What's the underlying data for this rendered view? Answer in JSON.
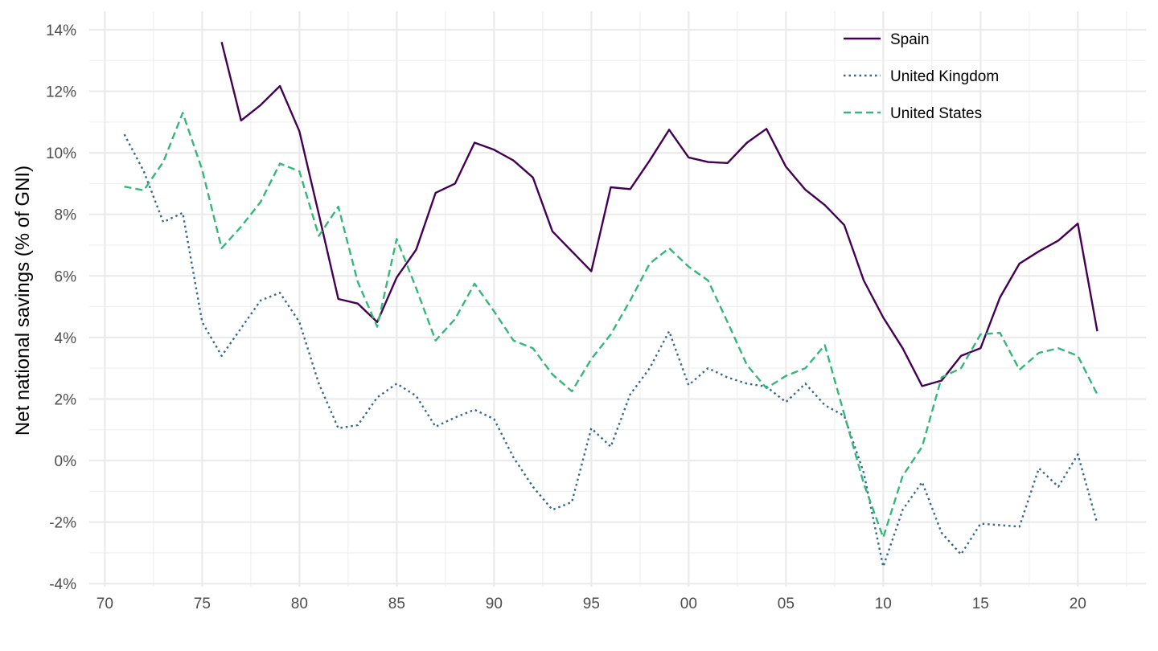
{
  "chart_data": {
    "type": "line",
    "title": "",
    "xlabel": "",
    "ylabel": "Net national savings (% of GNI)",
    "x_ticks": [
      1970,
      1975,
      1980,
      1985,
      1990,
      1995,
      2000,
      2005,
      2010,
      2015,
      2020
    ],
    "x_tick_labels": [
      "70",
      "75",
      "80",
      "85",
      "90",
      "95",
      "00",
      "05",
      "10",
      "15",
      "20"
    ],
    "y_ticks": [
      -4,
      -2,
      0,
      2,
      4,
      6,
      8,
      10,
      12,
      14
    ],
    "y_tick_labels": [
      "-4%",
      "-2%",
      "0%",
      "2%",
      "4%",
      "6%",
      "8%",
      "10%",
      "12%",
      "14%"
    ],
    "xlim": [
      1969.2,
      2023.5
    ],
    "ylim": [
      -4.1,
      14.6
    ],
    "grid": true,
    "legend_position": "top-right",
    "series": [
      {
        "name": "Spain",
        "color": "#440154",
        "dash": "solid",
        "points": [
          [
            1976,
            13.6
          ],
          [
            1977,
            11.05
          ],
          [
            1978,
            11.55
          ],
          [
            1979,
            12.17
          ],
          [
            1980,
            10.7
          ],
          [
            1981,
            8.0
          ],
          [
            1982,
            5.25
          ],
          [
            1983,
            5.1
          ],
          [
            1984,
            4.5
          ],
          [
            1985,
            5.95
          ],
          [
            1986,
            6.85
          ],
          [
            1987,
            8.7
          ],
          [
            1988,
            9.0
          ],
          [
            1989,
            10.33
          ],
          [
            1990,
            10.1
          ],
          [
            1991,
            9.75
          ],
          [
            1992,
            9.2
          ],
          [
            1993,
            7.45
          ],
          [
            1994,
            6.8
          ],
          [
            1995,
            6.15
          ],
          [
            1996,
            8.88
          ],
          [
            1997,
            8.82
          ],
          [
            1998,
            9.75
          ],
          [
            1999,
            10.75
          ],
          [
            2000,
            9.85
          ],
          [
            2001,
            9.7
          ],
          [
            2002,
            9.67
          ],
          [
            2003,
            10.33
          ],
          [
            2004,
            10.78
          ],
          [
            2005,
            9.55
          ],
          [
            2006,
            8.8
          ],
          [
            2007,
            8.3
          ],
          [
            2008,
            7.65
          ],
          [
            2009,
            5.85
          ],
          [
            2010,
            4.65
          ],
          [
            2011,
            3.65
          ],
          [
            2012,
            2.42
          ],
          [
            2013,
            2.6
          ],
          [
            2014,
            3.4
          ],
          [
            2015,
            3.65
          ],
          [
            2016,
            5.3
          ],
          [
            2017,
            6.4
          ],
          [
            2018,
            6.8
          ],
          [
            2019,
            7.15
          ],
          [
            2020,
            7.7
          ],
          [
            2021,
            4.2
          ]
        ]
      },
      {
        "name": "United Kingdom",
        "color": "#31688e",
        "dash": "dotted",
        "points": [
          [
            1971,
            10.6
          ],
          [
            1972,
            9.4
          ],
          [
            1973,
            7.75
          ],
          [
            1974,
            8.05
          ],
          [
            1975,
            4.5
          ],
          [
            1976,
            3.4
          ],
          [
            1977,
            4.3
          ],
          [
            1978,
            5.2
          ],
          [
            1979,
            5.45
          ],
          [
            1980,
            4.5
          ],
          [
            1981,
            2.5
          ],
          [
            1982,
            1.05
          ],
          [
            1983,
            1.15
          ],
          [
            1984,
            2.05
          ],
          [
            1985,
            2.5
          ],
          [
            1986,
            2.1
          ],
          [
            1987,
            1.1
          ],
          [
            1988,
            1.4
          ],
          [
            1989,
            1.65
          ],
          [
            1990,
            1.35
          ],
          [
            1991,
            0.1
          ],
          [
            1992,
            -0.85
          ],
          [
            1993,
            -1.6
          ],
          [
            1994,
            -1.35
          ],
          [
            1995,
            1.05
          ],
          [
            1996,
            0.45
          ],
          [
            1997,
            2.15
          ],
          [
            1998,
            3.0
          ],
          [
            1999,
            4.2
          ],
          [
            2000,
            2.45
          ],
          [
            2001,
            3.0
          ],
          [
            2002,
            2.7
          ],
          [
            2003,
            2.5
          ],
          [
            2004,
            2.4
          ],
          [
            2005,
            1.9
          ],
          [
            2006,
            2.5
          ],
          [
            2007,
            1.8
          ],
          [
            2008,
            1.45
          ],
          [
            2009,
            -0.4
          ],
          [
            2010,
            -3.45
          ],
          [
            2011,
            -1.6
          ],
          [
            2012,
            -0.7
          ],
          [
            2013,
            -2.35
          ],
          [
            2014,
            -3.05
          ],
          [
            2015,
            -2.05
          ],
          [
            2016,
            -2.1
          ],
          [
            2017,
            -2.15
          ],
          [
            2018,
            -0.25
          ],
          [
            2019,
            -0.85
          ],
          [
            2020,
            0.2
          ],
          [
            2021,
            -2.05
          ]
        ]
      },
      {
        "name": "United States",
        "color": "#35b779",
        "dash": "dashed",
        "points": [
          [
            1971,
            8.9
          ],
          [
            1972,
            8.78
          ],
          [
            1973,
            9.7
          ],
          [
            1974,
            11.3
          ],
          [
            1975,
            9.45
          ],
          [
            1976,
            6.9
          ],
          [
            1977,
            7.6
          ],
          [
            1978,
            8.4
          ],
          [
            1979,
            9.65
          ],
          [
            1980,
            9.4
          ],
          [
            1981,
            7.3
          ],
          [
            1982,
            8.25
          ],
          [
            1983,
            5.8
          ],
          [
            1984,
            4.35
          ],
          [
            1985,
            7.2
          ],
          [
            1986,
            5.6
          ],
          [
            1987,
            3.9
          ],
          [
            1988,
            4.6
          ],
          [
            1989,
            5.75
          ],
          [
            1990,
            4.85
          ],
          [
            1991,
            3.9
          ],
          [
            1992,
            3.65
          ],
          [
            1993,
            2.8
          ],
          [
            1994,
            2.25
          ],
          [
            1995,
            3.3
          ],
          [
            1996,
            4.1
          ],
          [
            1997,
            5.2
          ],
          [
            1998,
            6.4
          ],
          [
            1999,
            6.9
          ],
          [
            2000,
            6.3
          ],
          [
            2001,
            5.85
          ],
          [
            2002,
            4.5
          ],
          [
            2003,
            3.1
          ],
          [
            2004,
            2.35
          ],
          [
            2005,
            2.75
          ],
          [
            2006,
            3.0
          ],
          [
            2007,
            3.75
          ],
          [
            2008,
            1.5
          ],
          [
            2009,
            -0.75
          ],
          [
            2010,
            -2.5
          ],
          [
            2011,
            -0.5
          ],
          [
            2012,
            0.45
          ],
          [
            2013,
            2.7
          ],
          [
            2014,
            3.0
          ],
          [
            2015,
            4.1
          ],
          [
            2016,
            4.15
          ],
          [
            2017,
            2.95
          ],
          [
            2018,
            3.5
          ],
          [
            2019,
            3.65
          ],
          [
            2020,
            3.4
          ],
          [
            2021,
            2.15
          ]
        ]
      }
    ]
  }
}
